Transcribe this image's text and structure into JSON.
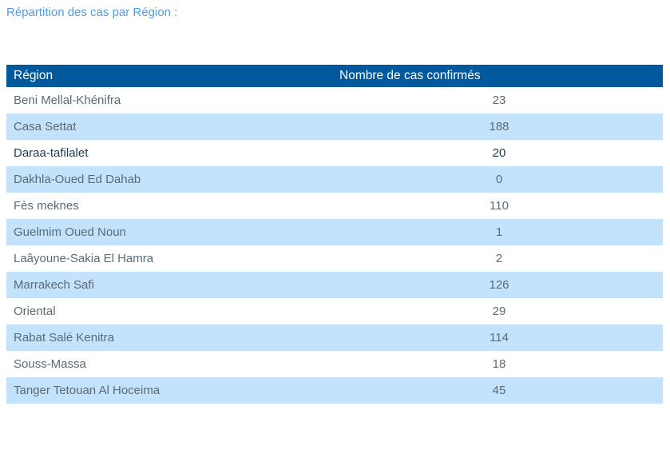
{
  "page_title": "Répartition des cas par Région :",
  "table": {
    "columns": [
      {
        "label": "Région"
      },
      {
        "label": "Nombre de cas confirmés"
      }
    ],
    "rows": [
      {
        "region": "Beni Mellal-Khénifra",
        "cases": "23",
        "emphasized": false
      },
      {
        "region": "Casa Settat",
        "cases": "188",
        "emphasized": false
      },
      {
        "region": "Daraa-tafilalet",
        "cases": "20",
        "emphasized": true
      },
      {
        "region": "Dakhla-Oued Ed Dahab",
        "cases": "0",
        "emphasized": false
      },
      {
        "region": "Fès meknes",
        "cases": "110",
        "emphasized": false
      },
      {
        "region": "Guelmim Oued Noun",
        "cases": "1",
        "emphasized": false
      },
      {
        "region": "Laâyoune-Sakia El Hamra",
        "cases": "2",
        "emphasized": false
      },
      {
        "region": "Marrakech Safi",
        "cases": "126",
        "emphasized": false
      },
      {
        "region": "Oriental",
        "cases": "29",
        "emphasized": false
      },
      {
        "region": "Rabat Salé Kenitra",
        "cases": "114",
        "emphasized": false
      },
      {
        "region": "Souss-Massa",
        "cases": "18",
        "emphasized": false
      },
      {
        "region": "Tanger Tetouan Al Hoceima",
        "cases": "45",
        "emphasized": false
      }
    ]
  },
  "colors": {
    "header_bg": "#00599C",
    "header_text": "#FFFFFF",
    "zebra_row_bg": "#C3E2FC",
    "title_text": "#4E9DE6",
    "row_text": "#5A6B76",
    "emphasized_row_text": "#1D3C52"
  },
  "chart_data": {
    "type": "table",
    "title": "Répartition des cas par Région :",
    "columns": [
      "Région",
      "Nombre de cas confirmés"
    ],
    "categories": [
      "Beni Mellal-Khénifra",
      "Casa Settat",
      "Daraa-tafilalet",
      "Dakhla-Oued Ed Dahab",
      "Fès meknes",
      "Guelmim Oued Noun",
      "Laâyoune-Sakia El Hamra",
      "Marrakech Safi",
      "Oriental",
      "Rabat Salé Kenitra",
      "Souss-Massa",
      "Tanger Tetouan Al Hoceima"
    ],
    "values": [
      23,
      188,
      20,
      0,
      110,
      1,
      2,
      126,
      29,
      114,
      18,
      45
    ],
    "layout": {
      "zebra_striping": true,
      "value_alignment": "center",
      "grid": false
    }
  }
}
